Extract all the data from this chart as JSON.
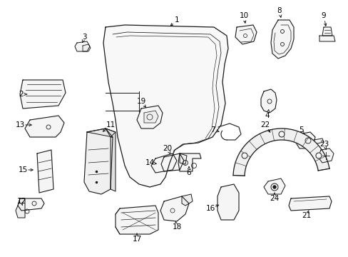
{
  "background": "#ffffff",
  "line_color": "#1a1a1a",
  "figsize": [
    4.89,
    3.6
  ],
  "dpi": 100,
  "xlim": [
    0,
    489
  ],
  "ylim": [
    0,
    360
  ]
}
